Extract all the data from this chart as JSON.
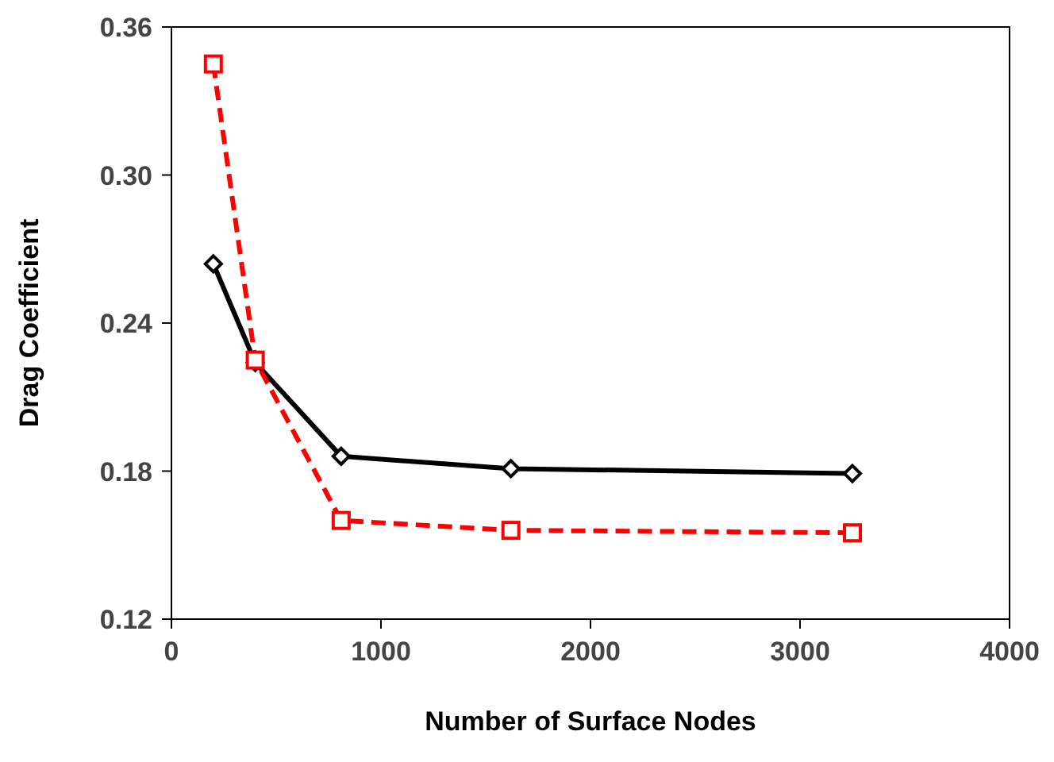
{
  "chart_data": {
    "type": "line",
    "xlabel": "Number of Surface Nodes",
    "ylabel": "Drag Coefficient",
    "xlim": [
      0,
      4000
    ],
    "xticks": [
      0,
      1000,
      2000,
      3000,
      4000
    ],
    "ylim": [
      0.12,
      0.36
    ],
    "yticks": [
      {
        "value": 0.12,
        "label": "0.12"
      },
      {
        "value": 0.18,
        "label": "0.18"
      },
      {
        "value": 0.24,
        "label": "0.24"
      },
      {
        "value": 0.3,
        "label": "0.30"
      },
      {
        "value": 0.36,
        "label": "0.36"
      }
    ],
    "grid": false,
    "series": [
      {
        "color": "#000000",
        "x": [
          200,
          400,
          810,
          1620,
          3250
        ],
        "values": [
          0.264,
          0.224,
          0.186,
          0.181,
          0.179
        ],
        "marker": "diamond",
        "line_style": "solid"
      },
      {
        "color": "#ff0000",
        "x": [
          200,
          400,
          810,
          1620,
          3250
        ],
        "values": [
          0.345,
          0.225,
          0.16,
          0.156,
          0.155
        ],
        "marker": "square",
        "line_style": "dashed"
      }
    ]
  }
}
